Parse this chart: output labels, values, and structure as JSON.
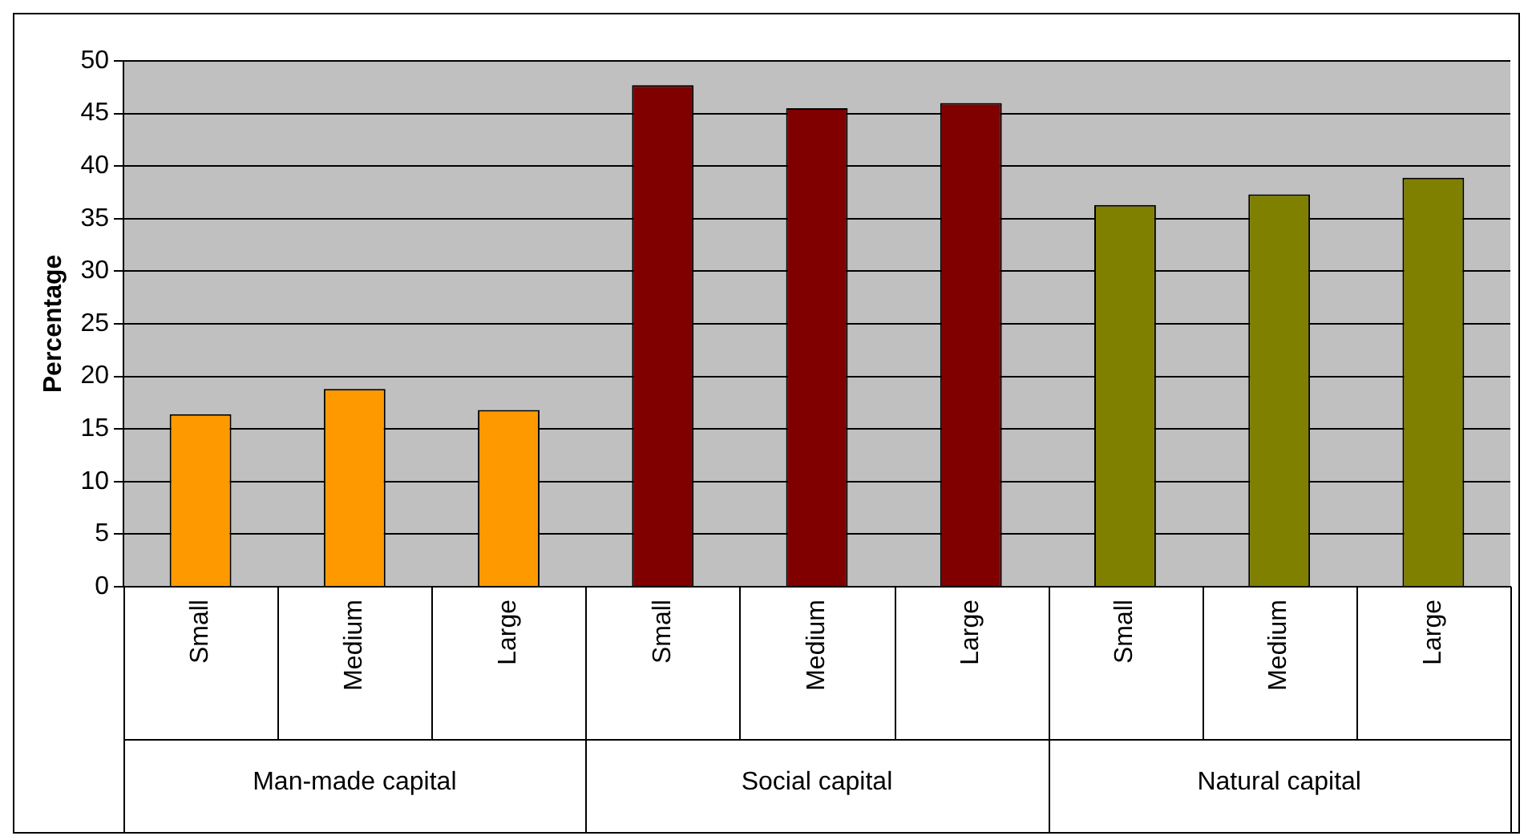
{
  "chart_data": {
    "type": "bar",
    "ylabel": "Percentage",
    "categories": [
      "Small",
      "Medium",
      "Large",
      "Small",
      "Medium",
      "Large",
      "Small",
      "Medium",
      "Large"
    ],
    "values": [
      16.4,
      18.8,
      16.8,
      47.7,
      45.5,
      46.0,
      36.3,
      37.3,
      38.9
    ],
    "colors": [
      "#ff9900",
      "#ff9900",
      "#ff9900",
      "#800000",
      "#800000",
      "#800000",
      "#808000",
      "#808000",
      "#808000"
    ],
    "annotations": [
      "Man-made capital",
      "Social capital",
      "Natural capital"
    ],
    "ylim": [
      0,
      50
    ],
    "yticks": [
      0,
      5,
      10,
      15,
      20,
      25,
      30,
      35,
      40,
      45,
      50
    ],
    "grid": "y",
    "legend": false
  }
}
